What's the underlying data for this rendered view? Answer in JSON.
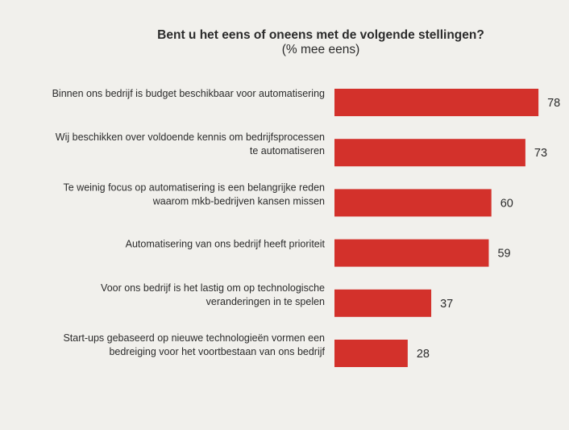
{
  "chart_data": {
    "type": "bar",
    "orientation": "horizontal",
    "title": "Bent u het eens of oneens met de volgende stellingen?",
    "subtitle": "(% mee eens)",
    "categories": [
      [
        "Binnen ons bedrijf is budget beschikbaar voor automatisering"
      ],
      [
        "Wij beschikken over voldoende kennis om bedrijfsprocessen",
        "te automatiseren"
      ],
      [
        "Te weinig focus op automatisering is een belangrijke reden",
        "waarom mkb-bedrijven kansen missen"
      ],
      [
        "Automatisering van ons bedrijf heeft prioriteit"
      ],
      [
        "Voor ons bedrijf is het lastig om op technologische",
        "veranderingen in te spelen"
      ],
      [
        "Start-ups gebaseerd op nieuwe technologieën vormen een",
        "bedreiging voor het voortbestaan van ons bedrijf"
      ]
    ],
    "values": [
      78,
      73,
      60,
      59,
      37,
      28
    ],
    "xlim": [
      0,
      100
    ],
    "grid": false,
    "legend": "none",
    "colors": {
      "bar": "#d3312b",
      "background": "#f1f0ec",
      "text": "#2b2b2b"
    }
  }
}
